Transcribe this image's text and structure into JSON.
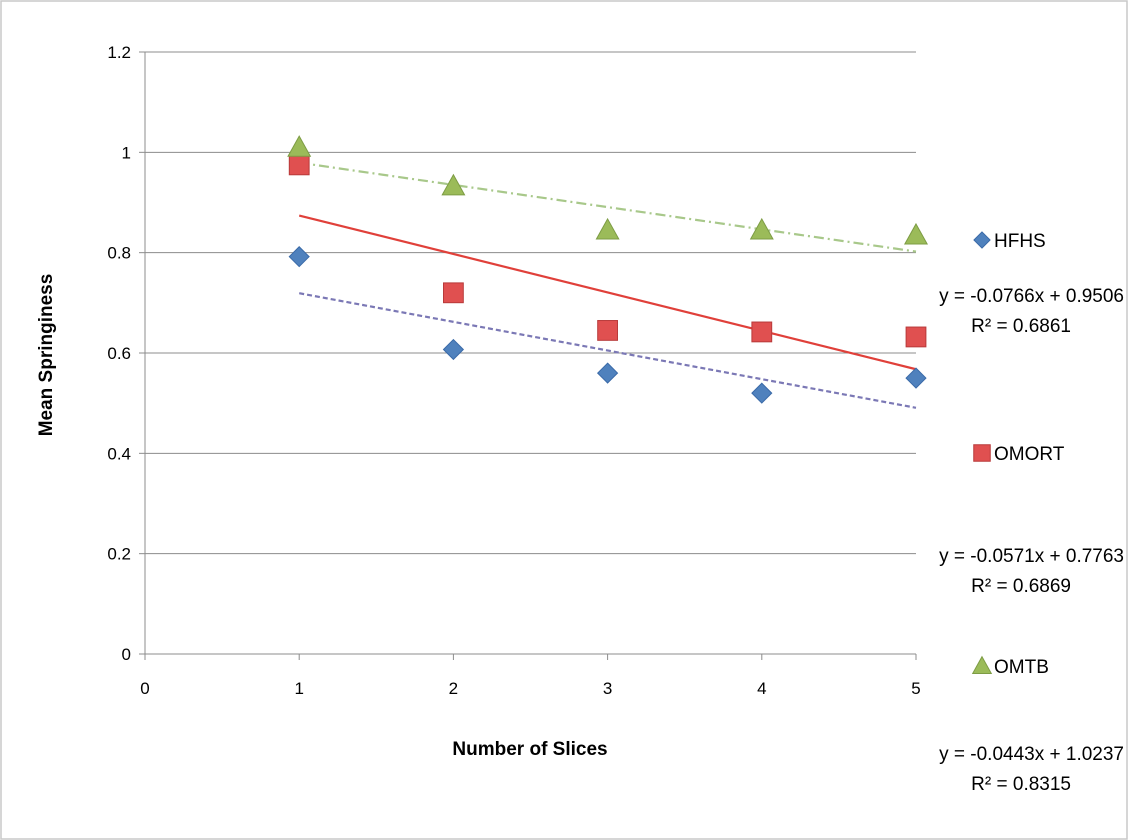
{
  "chart_data": {
    "type": "scatter",
    "title": "",
    "xlabel": "Number of Slices",
    "ylabel": "Mean  Springiness",
    "xlim": [
      0,
      5
    ],
    "ylim": [
      0,
      1.2
    ],
    "x_ticks": [
      "0",
      "1",
      "2",
      "3",
      "4",
      "5"
    ],
    "y_ticks": [
      "0",
      "0.2",
      "0.4",
      "0.6",
      "0.8",
      "1",
      "1.2"
    ],
    "grid": "horizontal",
    "legend_position": "right",
    "series": [
      {
        "name": "HFHS",
        "marker": "diamond",
        "color": "#4f81bd",
        "x": [
          1,
          2,
          3,
          4,
          5
        ],
        "y": [
          0.792,
          0.607,
          0.56,
          0.52,
          0.55
        ],
        "trendline": {
          "style": "dashed",
          "color": "#7b78b5",
          "slope": -0.0571,
          "intercept": 0.7763,
          "equation": "y = -0.0571x + 0.7763",
          "r2": "R² = 0.6869"
        }
      },
      {
        "name": "OMORT",
        "marker": "square",
        "color": "#e05050",
        "x": [
          1,
          2,
          3,
          4,
          5
        ],
        "y": [
          0.975,
          0.72,
          0.645,
          0.642,
          0.632
        ],
        "trendline": {
          "style": "solid",
          "color": "#e0403a",
          "slope": -0.0766,
          "intercept": 0.9506,
          "equation": "y = -0.0766x + 0.9506",
          "r2": "R² = 0.6861"
        }
      },
      {
        "name": "OMTB",
        "marker": "triangle",
        "color": "#9bbb59",
        "x": [
          1,
          2,
          3,
          4,
          5
        ],
        "y": [
          1.01,
          0.933,
          0.845,
          0.845,
          0.835
        ],
        "trendline": {
          "style": "dashdot",
          "color": "#a8c88a",
          "slope": -0.0443,
          "intercept": 1.0237,
          "equation": "y = -0.0443x + 1.0237",
          "r2": "R² = 0.8315"
        }
      }
    ]
  }
}
